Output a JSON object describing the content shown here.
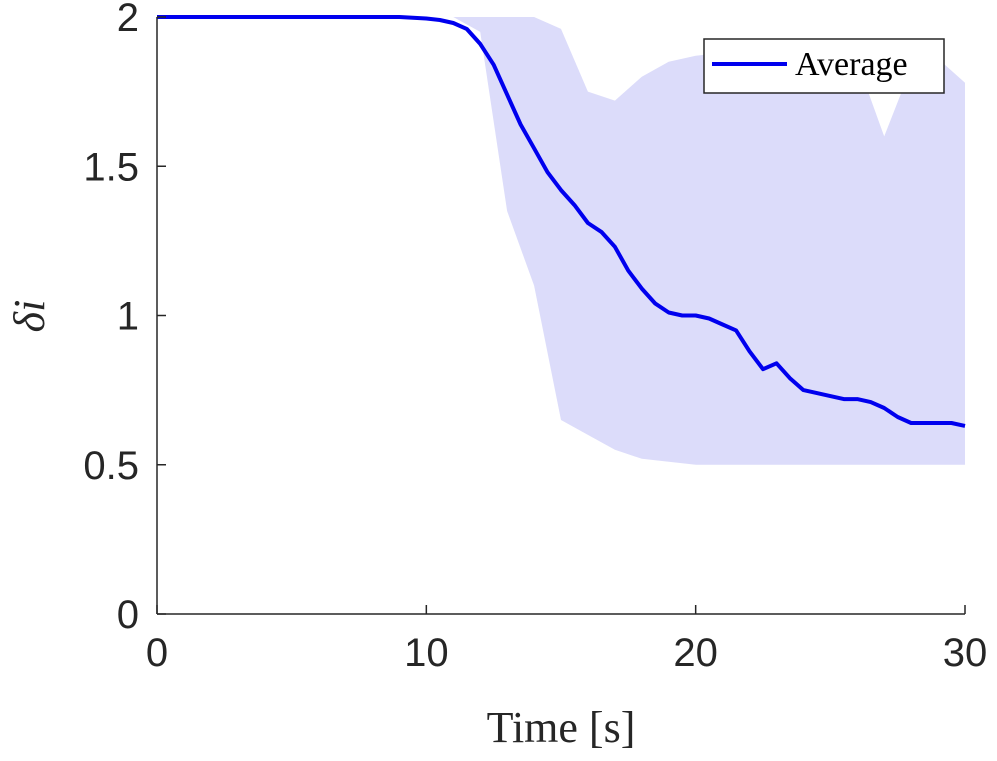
{
  "chart_data": {
    "type": "line",
    "xlabel": "Time [s]",
    "ylabel": "δi",
    "xlim": [
      0,
      30
    ],
    "ylim": [
      0,
      2
    ],
    "xticks": [
      0,
      10,
      20,
      30
    ],
    "yticks": [
      0,
      0.5,
      1,
      1.5,
      2
    ],
    "grid": false,
    "legend_position": "top-right",
    "series": [
      {
        "name": "Average",
        "color": "#0000ee",
        "x": [
          0,
          5,
          9,
          10,
          10.5,
          11,
          11.5,
          12,
          12.5,
          13,
          13.5,
          14,
          14.5,
          15,
          15.5,
          16,
          16.5,
          17,
          17.5,
          18,
          18.5,
          19,
          19.5,
          20,
          20.5,
          21,
          21.5,
          22,
          22.5,
          23,
          23.5,
          24,
          24.5,
          25,
          25.5,
          26,
          26.5,
          27,
          27.5,
          28,
          28.5,
          29,
          29.5,
          30
        ],
        "values": [
          2.0,
          2.0,
          2.0,
          1.995,
          1.99,
          1.98,
          1.96,
          1.91,
          1.84,
          1.74,
          1.64,
          1.56,
          1.48,
          1.42,
          1.37,
          1.31,
          1.28,
          1.23,
          1.15,
          1.09,
          1.04,
          1.01,
          1.0,
          1.0,
          0.99,
          0.97,
          0.95,
          0.88,
          0.82,
          0.84,
          0.79,
          0.75,
          0.74,
          0.73,
          0.72,
          0.72,
          0.71,
          0.69,
          0.66,
          0.64,
          0.64,
          0.64,
          0.64,
          0.63
        ]
      }
    ],
    "band": {
      "color": "#dcdcfa",
      "x": [
        0,
        10,
        11,
        12,
        13,
        14,
        15,
        16,
        17,
        18,
        19,
        20,
        21,
        22,
        23,
        24,
        25,
        26,
        27,
        28,
        29,
        30
      ],
      "lower": [
        2.0,
        2.0,
        2.0,
        1.95,
        1.35,
        1.1,
        0.65,
        0.6,
        0.55,
        0.52,
        0.51,
        0.5,
        0.5,
        0.5,
        0.5,
        0.5,
        0.5,
        0.5,
        0.5,
        0.5,
        0.5,
        0.5
      ],
      "upper": [
        2.0,
        2.0,
        2.0,
        2.0,
        2.0,
        2.0,
        1.96,
        1.75,
        1.72,
        1.8,
        1.85,
        1.87,
        1.88,
        1.9,
        1.88,
        1.86,
        1.87,
        1.85,
        1.6,
        1.83,
        1.86,
        1.78
      ]
    }
  }
}
